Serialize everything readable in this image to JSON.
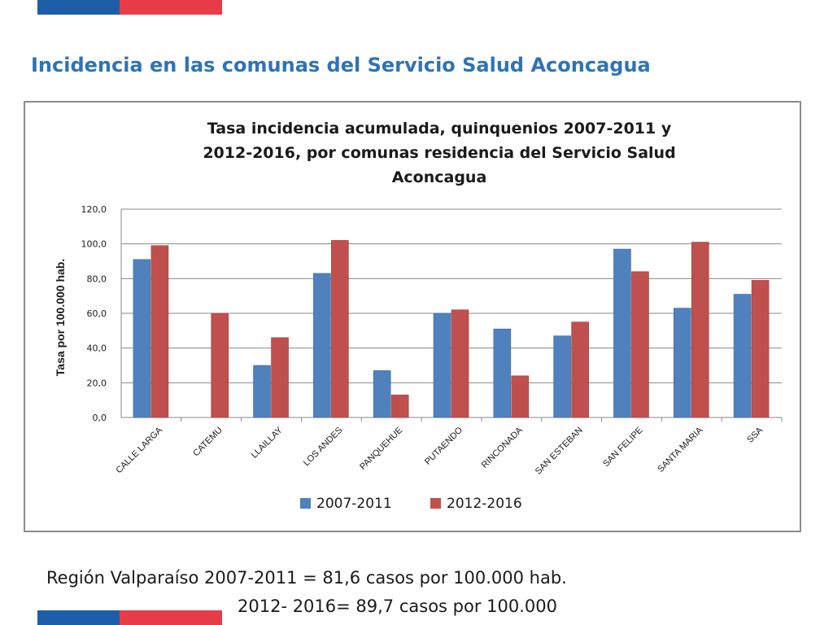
{
  "slide": {
    "title": "Incidencia en las comunas del Servicio Salud Aconcagua",
    "footnote_line1": "Región Valparaíso 2007-2011 = 81,6 casos por 100.000 hab.",
    "footnote_line2": "2012- 2016= 89,7 casos por 100.000",
    "colors": {
      "title": "#2e73b8",
      "flag_blue": "#1d5ea8",
      "flag_red": "#e63c48"
    }
  },
  "chart_data": {
    "type": "bar",
    "title_lines": [
      "Tasa incidencia acumulada, quinquenios 2007-2011 y",
      "2012-2016, por comunas residencia del Servicio Salud",
      "Aconcagua"
    ],
    "ylabel": "Tasa por 100.000 hab.",
    "xlabel": "",
    "ylim": [
      0,
      120
    ],
    "yticks": [
      "0,0",
      "20,0",
      "40,0",
      "60,0",
      "80,0",
      "100,0",
      "120,0"
    ],
    "ytick_values": [
      0,
      20,
      40,
      60,
      80,
      100,
      120
    ],
    "grid": true,
    "legend_position": "bottom",
    "categories": [
      "CALLE LARGA",
      "CATEMU",
      "LLAILLAY",
      "LOS ANDES",
      "PANQUEHUE",
      "PUTAENDO",
      "RINCONADA",
      "SAN ESTEBAN",
      "SAN FELIPE",
      "SANTA MARIA",
      "SSA"
    ],
    "series": [
      {
        "name": "2007-2011",
        "color": "#4f81bd",
        "values": [
          91,
          0,
          30,
          83,
          27,
          60,
          51,
          47,
          97,
          63,
          71
        ]
      },
      {
        "name": "2012-2016",
        "color": "#c0504d",
        "values": [
          99,
          60,
          46,
          102,
          13,
          62,
          24,
          55,
          84,
          101,
          79
        ]
      }
    ]
  }
}
